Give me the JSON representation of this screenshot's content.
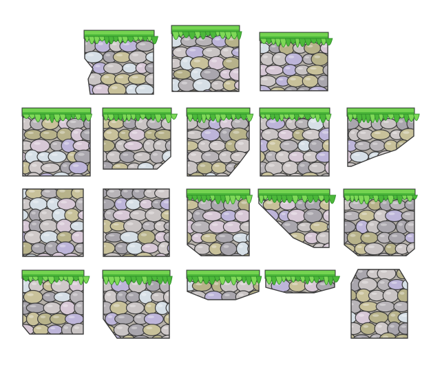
{
  "sprite_sheet": {
    "palette": {
      "background": "#ffffff",
      "grass_light": "#7ed957",
      "grass_mid": "#4cb83a",
      "grass_dark": "#2f8f2a",
      "outline": "#3b3b3b",
      "stone_colors": [
        "#c9c4c4",
        "#b8b4b8",
        "#d7c8d6",
        "#bdb5d9",
        "#c8c19a",
        "#b7b28a",
        "#d6dfe6",
        "#a9a6ad",
        "#cfc9c9"
      ]
    },
    "tiles": [
      {
        "id": "t01",
        "grass": true,
        "shape": "slope-left"
      },
      {
        "id": "t02",
        "grass": true,
        "shape": "grass-left-partial"
      },
      {
        "id": "t03",
        "grass": true,
        "shape": "block"
      },
      {
        "id": "t04",
        "grass": true,
        "shape": "block"
      },
      {
        "id": "t05",
        "grass": true,
        "shape": "notch-bottom-right"
      },
      {
        "id": "t06",
        "grass": true,
        "shape": "notch-bottom-right"
      },
      {
        "id": "t07",
        "grass": true,
        "shape": "grass-right-partial"
      },
      {
        "id": "t08",
        "grass": true,
        "shape": "bottom-notch-left"
      },
      {
        "id": "t09",
        "grass": false,
        "shape": "block"
      },
      {
        "id": "t10",
        "grass": false,
        "shape": "block"
      },
      {
        "id": "t11",
        "grass": true,
        "shape": "corner-left"
      },
      {
        "id": "t12",
        "grass": true,
        "shape": "overhang"
      },
      {
        "id": "t13",
        "grass": true,
        "shape": "block-rounded"
      },
      {
        "id": "t14",
        "grass": true,
        "shape": "column"
      },
      {
        "id": "t15",
        "grass": true,
        "shape": "column-wide"
      },
      {
        "id": "t16",
        "grass": true,
        "shape": "ledge"
      },
      {
        "id": "t17",
        "grass": true,
        "shape": "thin-ledge"
      },
      {
        "id": "t18",
        "grass": false,
        "shape": "pillar"
      }
    ]
  }
}
